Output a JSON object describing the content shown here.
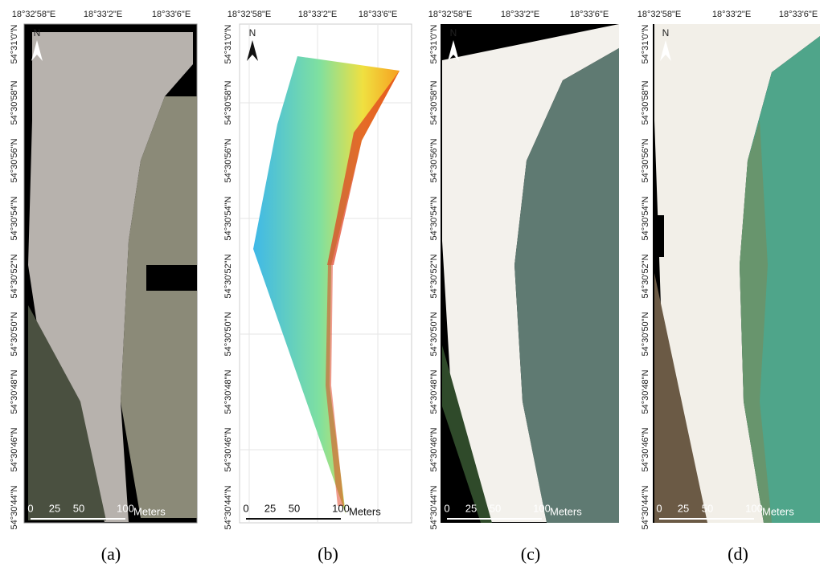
{
  "panels": [
    {
      "caption": "(a)",
      "north": "N",
      "lon_labels": [
        "18°32'58\"E",
        "18°33'2\"E",
        "18°33'6\"E"
      ],
      "lat_labels": [
        "54°31'0\"N",
        "54°30'58\"N",
        "54°30'56\"N",
        "54°30'54\"N",
        "54°30'52\"N",
        "54°30'50\"N",
        "54°30'48\"N",
        "54°30'46\"N",
        "54°30'44\"N"
      ],
      "scale": {
        "ticks": [
          0,
          25,
          50,
          100
        ],
        "unit": "Meters"
      }
    },
    {
      "caption": "(b)",
      "north": "N",
      "lon_labels": [
        "18°32'58\"E",
        "18°33'2\"E",
        "18°33'6\"E"
      ],
      "lat_labels": [
        "54°31'0\"N",
        "54°30'58\"N",
        "54°30'56\"N",
        "54°30'54\"N",
        "54°30'52\"N",
        "54°30'50\"N",
        "54°30'48\"N",
        "54°30'46\"N",
        "54°30'44\"N"
      ],
      "scale": {
        "ticks": [
          0,
          25,
          50,
          100
        ],
        "unit": "Meters"
      }
    },
    {
      "caption": "(c)",
      "north": "N",
      "lon_labels": [
        "18°32'58\"E",
        "18°33'2\"E",
        "18°33'6\"E"
      ],
      "lat_labels": [
        "54°31'0\"N",
        "54°30'58\"N",
        "54°30'56\"N",
        "54°30'54\"N",
        "54°30'52\"N",
        "54°30'50\"N",
        "54°30'48\"N",
        "54°30'46\"N",
        "54°30'44\"N"
      ],
      "scale": {
        "ticks": [
          0,
          25,
          50,
          100
        ],
        "unit": "Meters"
      }
    },
    {
      "caption": "(d)",
      "north": "N",
      "lon_labels": [
        "18°32'58\"E",
        "18°33'2\"E",
        "18°33'6\"E"
      ],
      "lat_labels": [
        "54°31'0\"N",
        "54°30'58\"N",
        "54°30'56\"N",
        "54°30'54\"N",
        "54°30'52\"N",
        "54°30'50\"N",
        "54°30'48\"N",
        "54°30'46\"N",
        "54°30'44\"N"
      ],
      "scale": {
        "ticks": [
          0,
          25,
          50,
          100
        ],
        "unit": "Meters"
      }
    }
  ]
}
